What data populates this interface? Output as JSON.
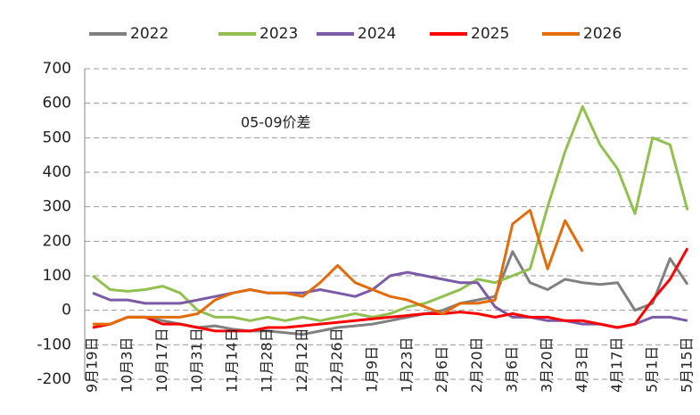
{
  "chart_data": {
    "type": "line",
    "annotation": "05-09价差",
    "categories": [
      "9月19日",
      null,
      "10月3日",
      null,
      "10月17日",
      null,
      "10月31日",
      null,
      "11月14日",
      null,
      "11月28日",
      null,
      "12月12日",
      null,
      "12月26日",
      null,
      "1月9日",
      null,
      "1月23日",
      null,
      "2月6日",
      null,
      "2月20日",
      null,
      "3月6日",
      null,
      "3月20日",
      null,
      "4月3日",
      null,
      "4月17日",
      null,
      "5月1日",
      null,
      "5月15日"
    ],
    "series": [
      {
        "name": "2022",
        "color": "#808080",
        "values": [
          null,
          -40,
          -20,
          -20,
          -30,
          -40,
          -50,
          -45,
          -55,
          -60,
          -60,
          -65,
          -70,
          -60,
          -50,
          -45,
          -40,
          -30,
          -20,
          -10,
          0,
          20,
          30,
          40,
          170,
          80,
          60,
          90,
          80,
          75,
          80,
          0,
          20,
          150,
          75
        ]
      },
      {
        "name": "2023",
        "color": "#92c050",
        "values": [
          100,
          60,
          55,
          60,
          70,
          50,
          0,
          -20,
          -20,
          -30,
          -20,
          -30,
          -20,
          -30,
          -20,
          -10,
          -20,
          -10,
          10,
          20,
          40,
          60,
          90,
          80,
          100,
          120,
          300,
          460,
          590,
          480,
          410,
          280,
          500,
          480,
          290
        ]
      },
      {
        "name": "2024",
        "color": "#7b5aa6",
        "values": [
          50,
          30,
          30,
          20,
          20,
          20,
          30,
          40,
          50,
          60,
          50,
          50,
          50,
          60,
          50,
          40,
          60,
          100,
          110,
          100,
          90,
          80,
          80,
          10,
          -20,
          -20,
          -30,
          -30,
          -40,
          -40,
          -50,
          -40,
          -20,
          -20,
          -30
        ]
      },
      {
        "name": "2025",
        "color": "#ff0000",
        "values": [
          -50,
          -40,
          -20,
          -20,
          -40,
          -40,
          -50,
          -60,
          -60,
          -60,
          -50,
          -50,
          -45,
          -40,
          -35,
          -30,
          -25,
          -20,
          -15,
          -10,
          -10,
          -5,
          -10,
          -20,
          -10,
          -20,
          -20,
          -30,
          -30,
          -40,
          -50,
          -40,
          30,
          90,
          180
        ]
      },
      {
        "name": "2026",
        "color": "#e36c0a",
        "values": [
          -40,
          -40,
          -20,
          -20,
          -20,
          -20,
          -10,
          30,
          50,
          60,
          50,
          50,
          40,
          80,
          130,
          80,
          60,
          40,
          30,
          10,
          -10,
          20,
          20,
          30,
          250,
          290,
          120,
          260,
          170,
          null,
          null,
          null,
          null,
          null,
          null
        ]
      }
    ],
    "ylim": [
      -200,
      700
    ],
    "yticks": [
      -200,
      -100,
      0,
      100,
      200,
      300,
      400,
      500,
      600,
      700
    ],
    "grid": true
  }
}
